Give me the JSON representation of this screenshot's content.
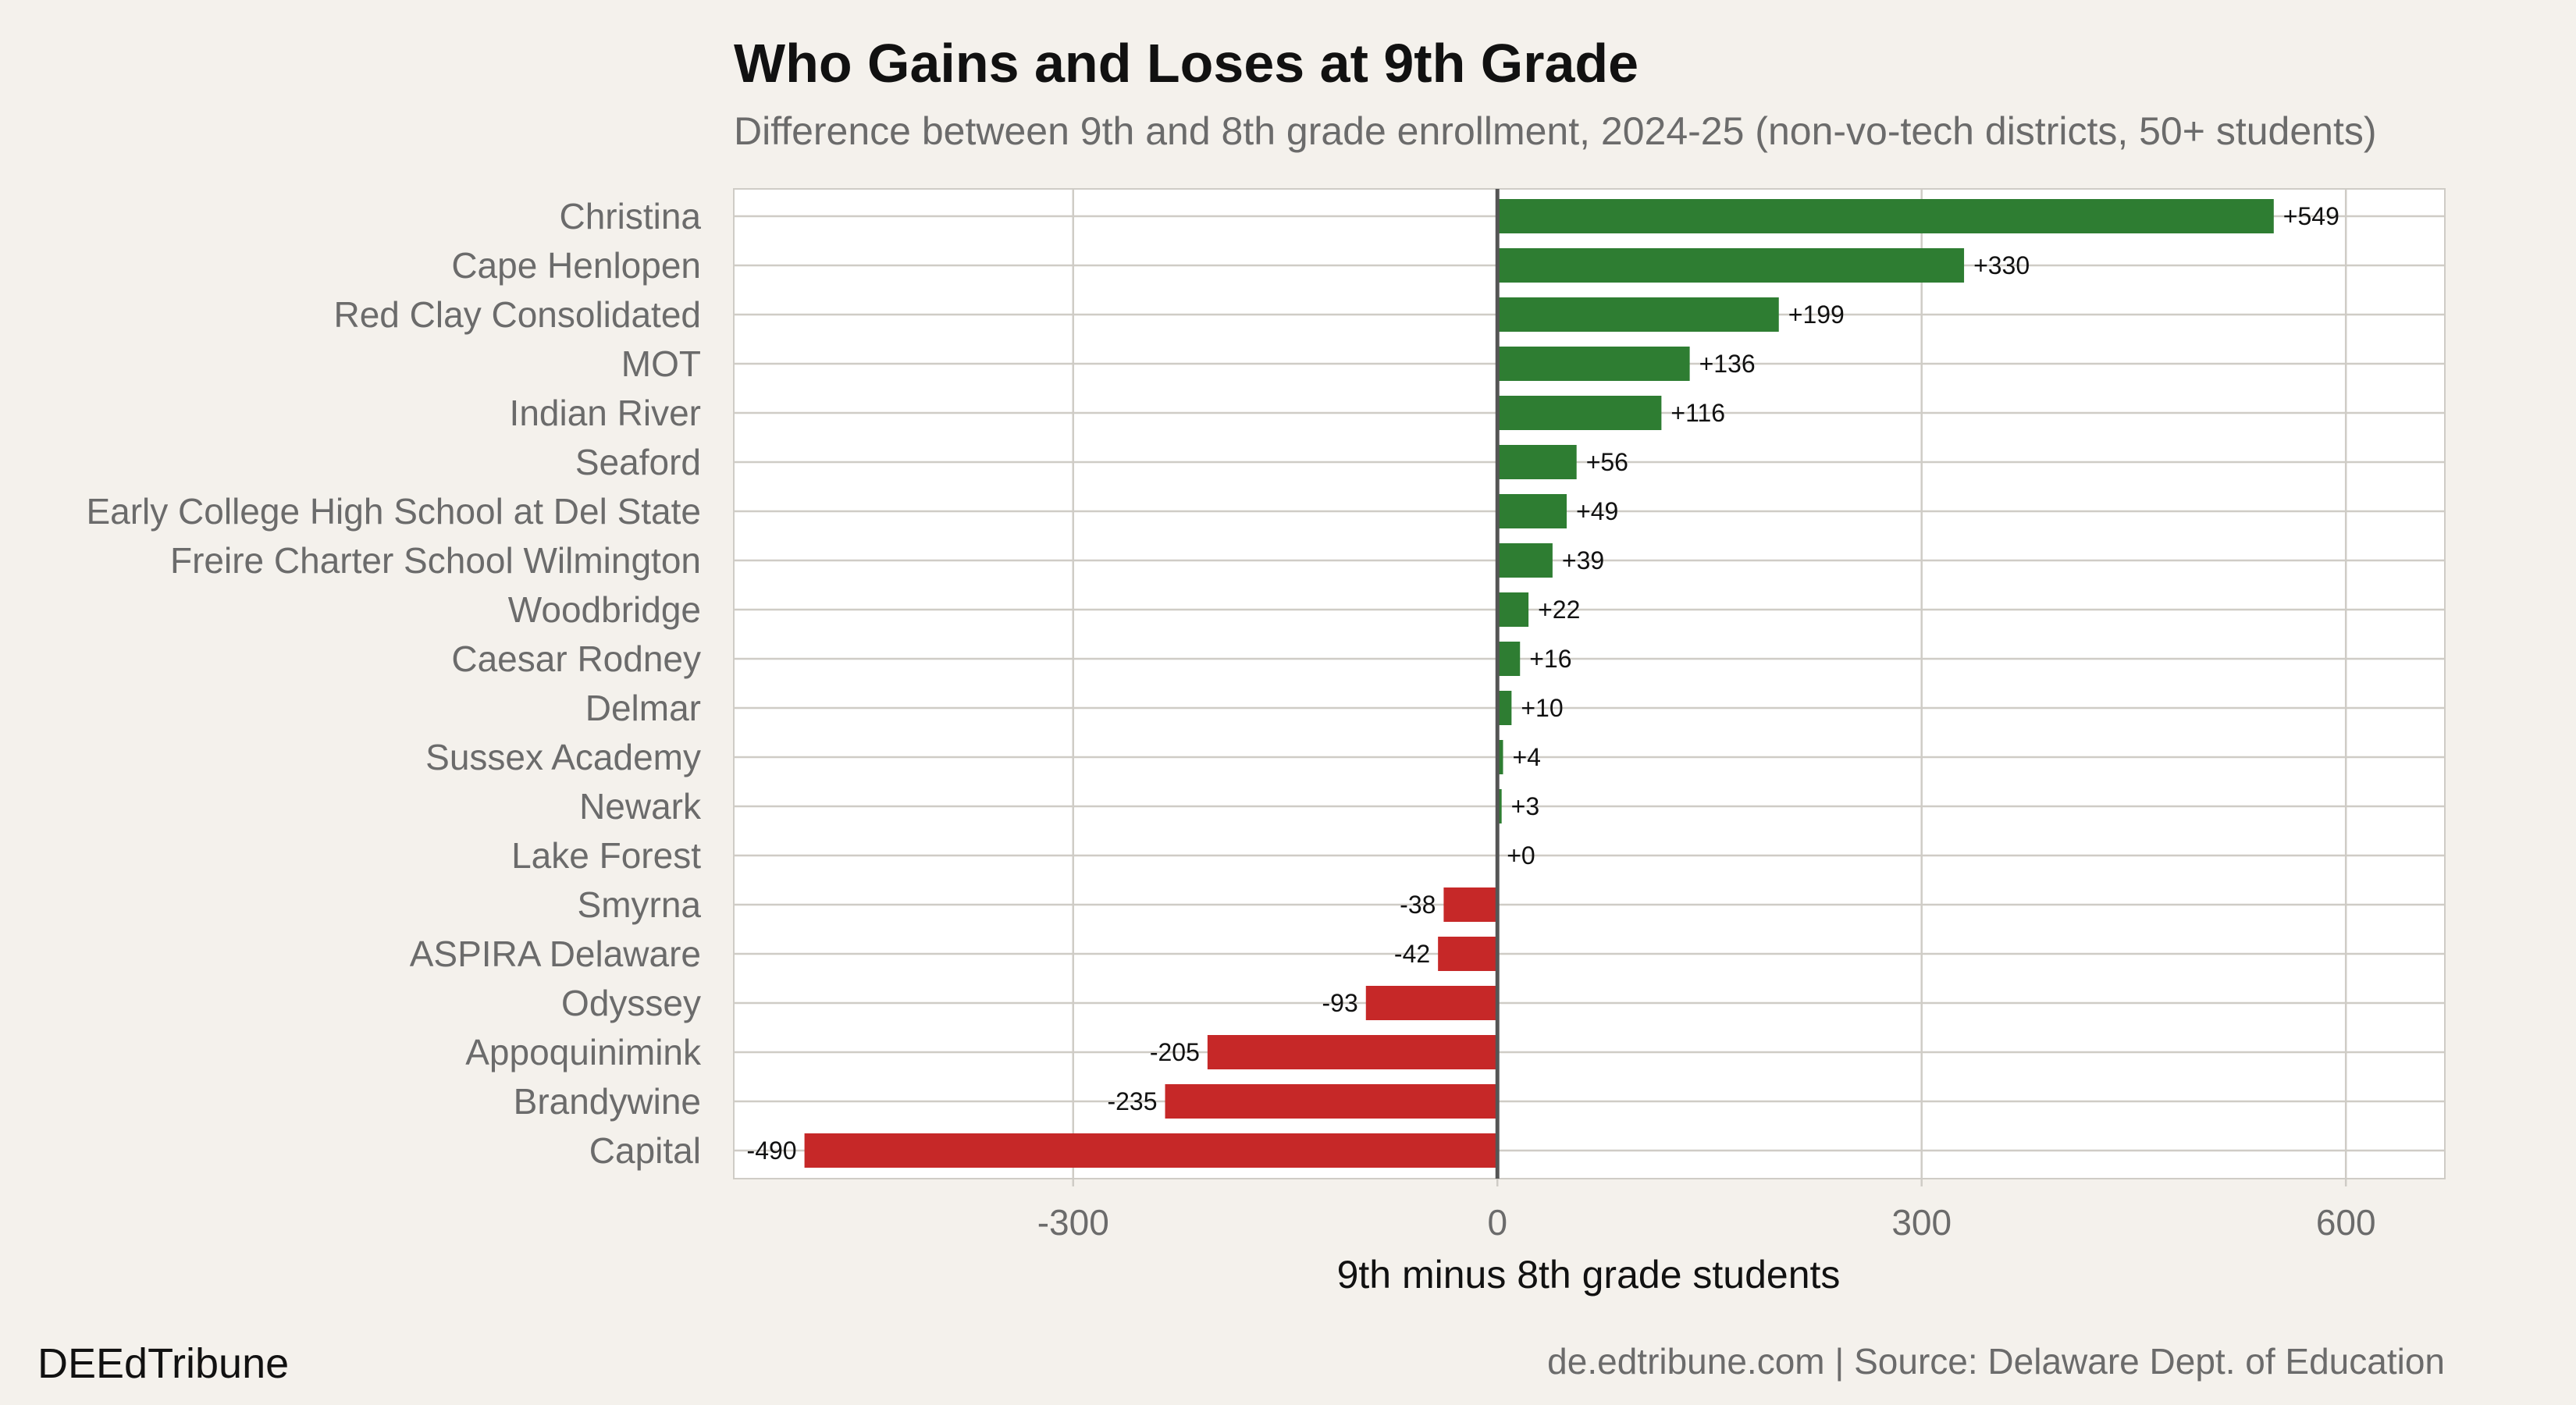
{
  "chart_data": {
    "type": "bar",
    "orientation": "horizontal",
    "title": "Who Gains and Loses at 9th Grade",
    "subtitle": "Difference between 9th and 8th grade enrollment, 2024-25 (non-vo-tech districts, 50+ students)",
    "xlabel": "9th minus 8th grade students",
    "ylabel": "",
    "xlim": [
      -540,
      670
    ],
    "xticks": [
      -300,
      0,
      300,
      600
    ],
    "xtick_labels": [
      "-300",
      "0",
      "300",
      "600"
    ],
    "grid": true,
    "categories": [
      "Christina",
      "Cape Henlopen",
      "Red Clay Consolidated",
      "MOT",
      "Indian River",
      "Seaford",
      "Early College High School at Del State",
      "Freire Charter School Wilmington",
      "Woodbridge",
      "Caesar Rodney",
      "Delmar",
      "Sussex Academy",
      "Newark",
      "Lake Forest",
      "Smyrna",
      "ASPIRA Delaware",
      "Odyssey",
      "Appoquinimink",
      "Brandywine",
      "Capital"
    ],
    "values": [
      549,
      330,
      199,
      136,
      116,
      56,
      49,
      39,
      22,
      16,
      10,
      4,
      3,
      0,
      -38,
      -42,
      -93,
      -205,
      -235,
      -490
    ],
    "value_labels": [
      "+549",
      "+330",
      "+199",
      "+136",
      "+116",
      "+56",
      "+49",
      "+39",
      "+22",
      "+16",
      "+10",
      "+4",
      "+3",
      "+0",
      "-38",
      "-42",
      "-93",
      "-205",
      "-235",
      "-490"
    ],
    "colors": {
      "positive": "#2E7D32",
      "negative": "#C62828",
      "zero_line": "#555555",
      "grid": "#CFCCC6",
      "panel_background": "#FFFFFF",
      "page_background": "#F4F1EC"
    }
  },
  "footer": {
    "brand": "DEEdTribune",
    "source": "de.edtribune.com | Source: Delaware Dept. of Education"
  }
}
